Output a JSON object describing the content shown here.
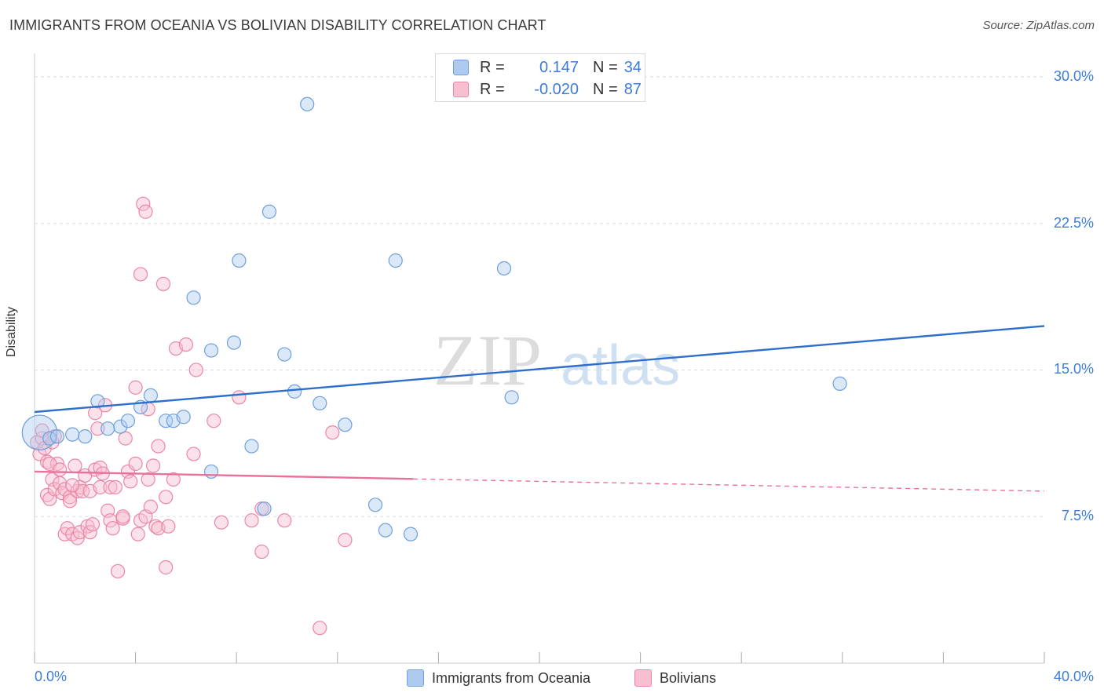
{
  "title": "IMMIGRANTS FROM OCEANIA VS BOLIVIAN DISABILITY CORRELATION CHART",
  "source": "Source: ZipAtlas.com",
  "watermark": {
    "zip": "ZIP",
    "atlas": "atlas"
  },
  "legend": {
    "r_label": "R =",
    "n_label": "N =",
    "series": [
      {
        "r": "0.147",
        "n": "34"
      },
      {
        "r": "-0.020",
        "n": "87"
      }
    ]
  },
  "colors": {
    "blue_fill": "#aecbef",
    "blue_stroke": "#6f9fdc",
    "blue_line": "#2f6fcc",
    "pink_fill": "#f7bfd0",
    "pink_stroke": "#eb86a6",
    "pink_line": "#e8729a",
    "grid": "#dddddd",
    "tick_text": "#3b7dd8"
  },
  "chart_data": {
    "type": "scatter",
    "title": "IMMIGRANTS FROM OCEANIA VS BOLIVIAN DISABILITY CORRELATION CHART",
    "xlabel": "",
    "ylabel": "Disability",
    "xlim": [
      0,
      40
    ],
    "ylim": [
      0,
      30.8
    ],
    "x_tick_labels": [
      "0.0%",
      "40.0%"
    ],
    "y_ticks": [
      7.5,
      15.0,
      22.5,
      30.0
    ],
    "y_tick_labels": [
      "7.5%",
      "15.0%",
      "22.5%",
      "30.0%"
    ],
    "grid": true,
    "series": [
      {
        "name": "Immigrants from Oceania",
        "color": "blue",
        "r": 0.147,
        "n": 34,
        "trend": {
          "x0": 0,
          "y0": 12.85,
          "x1": 40,
          "y1": 17.25,
          "solid_until": 40
        },
        "points": [
          [
            0.2,
            11.8,
            2.6
          ],
          [
            0.6,
            11.5,
            1
          ],
          [
            1.5,
            11.7,
            1
          ],
          [
            2.0,
            11.6,
            1
          ],
          [
            2.5,
            13.4,
            1
          ],
          [
            2.9,
            12.0,
            1
          ],
          [
            3.4,
            12.1,
            1
          ],
          [
            3.7,
            12.4,
            1
          ],
          [
            4.2,
            13.1,
            1
          ],
          [
            4.6,
            13.7,
            1
          ],
          [
            5.2,
            12.4,
            1
          ],
          [
            5.5,
            12.4,
            1
          ],
          [
            5.9,
            12.6,
            1
          ],
          [
            6.3,
            18.7,
            1
          ],
          [
            7.0,
            16.0,
            1
          ],
          [
            7.0,
            9.8,
            1
          ],
          [
            7.9,
            16.4,
            1
          ],
          [
            8.1,
            20.6,
            1
          ],
          [
            8.6,
            11.1,
            1
          ],
          [
            9.1,
            7.9,
            1
          ],
          [
            9.3,
            23.1,
            1
          ],
          [
            9.9,
            15.8,
            1
          ],
          [
            10.3,
            13.9,
            1
          ],
          [
            10.8,
            28.6,
            1
          ],
          [
            11.3,
            13.3,
            1
          ],
          [
            12.3,
            12.2,
            1
          ],
          [
            13.5,
            8.1,
            1
          ],
          [
            13.9,
            6.8,
            1
          ],
          [
            14.3,
            20.6,
            1
          ],
          [
            14.9,
            6.6,
            1
          ],
          [
            18.6,
            20.2,
            1
          ],
          [
            18.9,
            13.6,
            1
          ],
          [
            31.9,
            14.3,
            1
          ],
          [
            0.9,
            11.6,
            1
          ]
        ]
      },
      {
        "name": "Bolivians",
        "color": "pink",
        "r": -0.02,
        "n": 87,
        "trend": {
          "x0": 0,
          "y0": 9.8,
          "x1": 40,
          "y1": 8.8,
          "solid_until": 15.0
        },
        "points": [
          [
            0.1,
            11.3,
            1
          ],
          [
            0.2,
            10.7,
            1
          ],
          [
            0.3,
            11.5,
            1
          ],
          [
            0.4,
            11.0,
            1
          ],
          [
            0.5,
            10.3,
            1
          ],
          [
            0.5,
            8.6,
            1
          ],
          [
            0.6,
            8.4,
            1
          ],
          [
            0.7,
            9.4,
            1
          ],
          [
            0.7,
            11.3,
            1
          ],
          [
            0.8,
            8.9,
            1
          ],
          [
            0.9,
            10.2,
            1
          ],
          [
            1.0,
            9.2,
            1
          ],
          [
            1.1,
            8.7,
            1
          ],
          [
            1.2,
            8.9,
            1
          ],
          [
            1.2,
            6.6,
            1
          ],
          [
            1.3,
            6.9,
            1
          ],
          [
            1.4,
            8.5,
            1
          ],
          [
            1.4,
            8.3,
            1
          ],
          [
            1.5,
            6.6,
            1
          ],
          [
            1.6,
            10.1,
            1
          ],
          [
            1.7,
            6.4,
            1
          ],
          [
            1.7,
            8.8,
            1
          ],
          [
            1.8,
            9.0,
            1
          ],
          [
            1.8,
            6.7,
            1
          ],
          [
            1.9,
            8.8,
            1
          ],
          [
            2.0,
            9.6,
            1
          ],
          [
            2.1,
            7.0,
            1
          ],
          [
            2.2,
            6.7,
            1
          ],
          [
            2.2,
            8.8,
            1
          ],
          [
            2.3,
            7.1,
            1
          ],
          [
            2.4,
            9.9,
            1
          ],
          [
            2.4,
            12.8,
            1
          ],
          [
            2.5,
            12.0,
            1
          ],
          [
            2.6,
            10.0,
            1
          ],
          [
            2.6,
            9.0,
            1
          ],
          [
            2.7,
            9.7,
            1
          ],
          [
            2.8,
            13.2,
            1
          ],
          [
            2.9,
            7.8,
            1
          ],
          [
            3.0,
            9.0,
            1
          ],
          [
            3.0,
            7.3,
            1
          ],
          [
            3.1,
            6.9,
            1
          ],
          [
            3.2,
            9.0,
            1
          ],
          [
            3.3,
            4.7,
            1
          ],
          [
            3.5,
            7.4,
            1
          ],
          [
            3.5,
            7.5,
            1
          ],
          [
            3.6,
            11.5,
            1
          ],
          [
            3.7,
            9.8,
            1
          ],
          [
            3.8,
            9.3,
            1
          ],
          [
            4.0,
            14.1,
            1
          ],
          [
            4.0,
            10.2,
            1
          ],
          [
            4.1,
            6.6,
            1
          ],
          [
            4.2,
            7.3,
            1
          ],
          [
            4.3,
            23.5,
            1
          ],
          [
            4.2,
            19.9,
            1
          ],
          [
            4.4,
            23.1,
            1
          ],
          [
            4.4,
            7.5,
            1
          ],
          [
            4.5,
            13.0,
            1
          ],
          [
            4.5,
            9.4,
            1
          ],
          [
            4.6,
            8.0,
            1
          ],
          [
            4.7,
            10.1,
            1
          ],
          [
            4.8,
            7.0,
            1
          ],
          [
            4.9,
            6.9,
            1
          ],
          [
            4.9,
            11.1,
            1
          ],
          [
            5.1,
            19.4,
            1
          ],
          [
            5.2,
            4.9,
            1
          ],
          [
            5.2,
            8.5,
            1
          ],
          [
            5.3,
            7.0,
            1
          ],
          [
            5.5,
            9.4,
            1
          ],
          [
            5.6,
            16.1,
            1
          ],
          [
            6.0,
            16.3,
            1
          ],
          [
            6.3,
            10.7,
            1
          ],
          [
            6.4,
            15.0,
            1
          ],
          [
            7.1,
            12.4,
            1
          ],
          [
            7.4,
            7.2,
            1
          ],
          [
            8.1,
            13.6,
            1
          ],
          [
            8.6,
            7.3,
            1
          ],
          [
            9.0,
            5.7,
            1
          ],
          [
            9.0,
            7.9,
            1
          ],
          [
            9.9,
            7.3,
            1
          ],
          [
            11.3,
            1.8,
            1
          ],
          [
            11.8,
            11.8,
            1
          ],
          [
            12.3,
            6.3,
            1
          ],
          [
            0.3,
            11.9,
            1
          ],
          [
            0.6,
            10.2,
            1
          ],
          [
            1.0,
            9.9,
            1
          ],
          [
            1.5,
            9.1,
            1
          ],
          [
            0.8,
            11.6,
            1
          ]
        ]
      }
    ]
  },
  "bottom_legend": [
    "Immigrants from Oceania",
    "Bolivians"
  ]
}
